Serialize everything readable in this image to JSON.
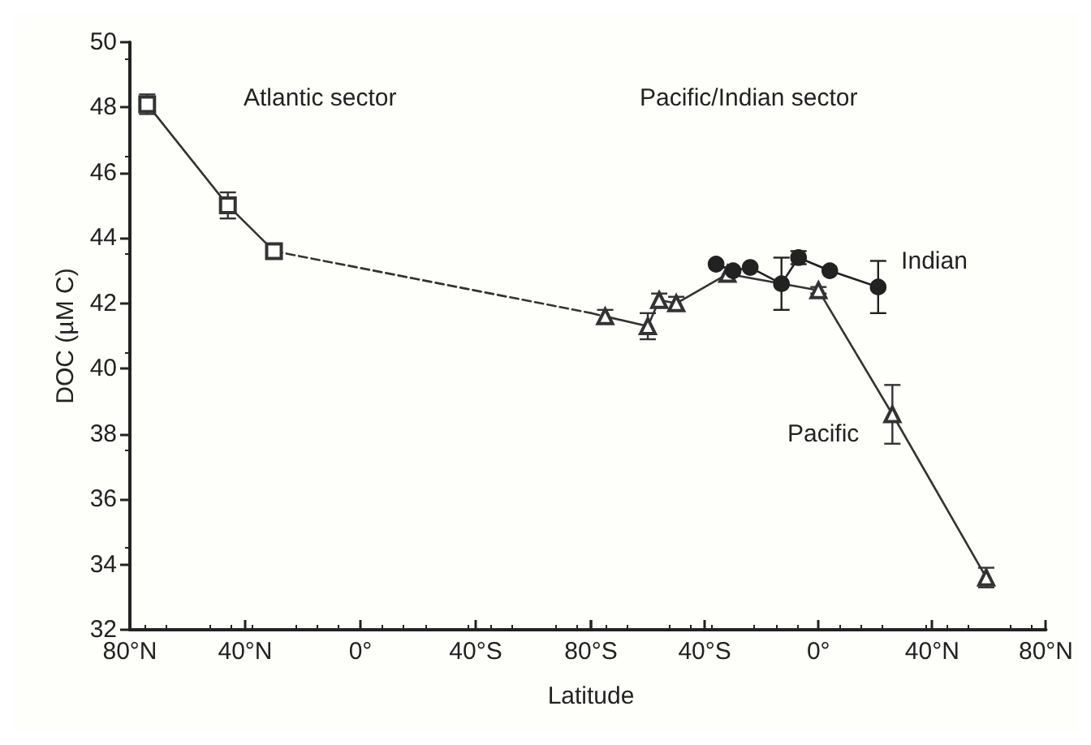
{
  "chart_data": [
    {
      "type": "line",
      "ylabel": "DOC (µM C)",
      "xlabel": "Latitude",
      "annotations": [
        "Atlantic sector"
      ],
      "series": [
        {
          "color": "#333333",
          "marker": "square",
          "line_style": "solid",
          "x": [
            74,
            46,
            30
          ],
          "values": [
            48.1,
            45.0,
            43.6
          ],
          "errors": [
            0.3,
            0.4,
            0.2
          ]
        },
        {
          "color": "#333333",
          "marker": "none",
          "line_style": "dashed",
          "x": [
            30,
            -80
          ],
          "values": [
            43.6,
            41.7
          ]
        }
      ],
      "xlim": [
        80,
        -80
      ],
      "xticks": [
        {
          "value": 80,
          "label": "80°N"
        },
        {
          "value": 40,
          "label": "40°N"
        },
        {
          "value": 0,
          "label": "0°"
        },
        {
          "value": -40,
          "label": "40°S"
        },
        {
          "value": -80,
          "label": "80°S"
        }
      ],
      "ylim": [
        32,
        50
      ],
      "yticks": [
        32,
        34,
        36,
        38,
        40,
        42,
        44,
        46,
        48,
        50
      ],
      "grid": false,
      "legend": false
    },
    {
      "type": "line",
      "annotations": [
        "Pacific/Indian sector"
      ],
      "series": [
        {
          "color": "#333333",
          "line_style": "dashed",
          "x": [
            -80,
            -75
          ],
          "values": [
            41.7,
            41.6
          ]
        },
        {
          "name": "Pacific",
          "color": "#333333",
          "marker": "triangle",
          "line_style": "solid",
          "x": [
            -75,
            -60,
            -56,
            -50,
            -32,
            0,
            26,
            59
          ],
          "values": [
            41.6,
            41.3,
            42.1,
            42.0,
            42.9,
            42.4,
            38.6,
            33.6
          ],
          "errors": [
            0.2,
            0.4,
            0.2,
            0.2,
            0.2,
            0.1,
            0.9,
            0.3
          ]
        },
        {
          "name": "Indian",
          "color": "#222222",
          "marker": "circle",
          "line_style": "solid",
          "x": [
            -36,
            -30,
            -24,
            -13,
            -7,
            4,
            21
          ],
          "values": [
            43.2,
            43.0,
            43.1,
            42.6,
            43.4,
            43.0,
            42.5
          ],
          "errors": [
            null,
            null,
            null,
            0.8,
            0.2,
            null,
            0.8
          ]
        }
      ],
      "xlim": [
        -80,
        80
      ],
      "xticks": [
        {
          "value": -80,
          "label": null
        },
        {
          "value": -40,
          "label": "40°S"
        },
        {
          "value": 0,
          "label": "0°"
        },
        {
          "value": 40,
          "label": "40°N"
        },
        {
          "value": 80,
          "label": "80°N"
        }
      ],
      "ylim": [
        32,
        50
      ],
      "yticks": [
        32,
        34,
        36,
        38,
        40,
        42,
        44,
        46,
        48,
        50
      ],
      "tick_labels": "x",
      "grid": false,
      "legend": false
    }
  ]
}
